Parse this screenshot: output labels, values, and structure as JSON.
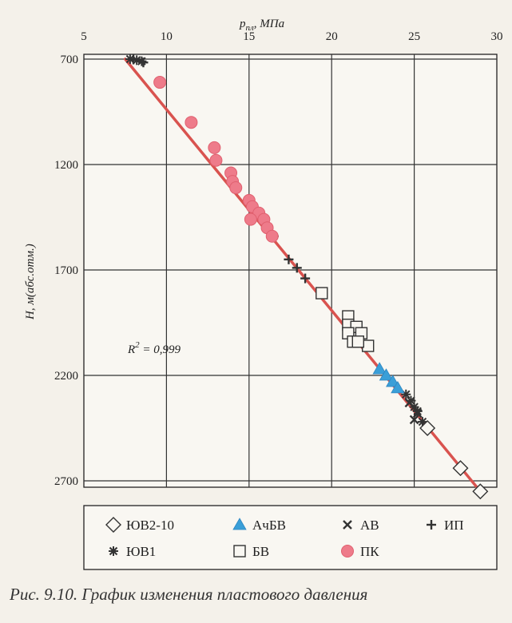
{
  "chart_data": {
    "type": "scatter",
    "xlabel": "p",
    "xlabel_sub": "пл",
    "xlabel_unit": ", МПа",
    "ylabel": "H, м(абс.отм.)",
    "xlim": [
      5,
      30
    ],
    "ylim": [
      700,
      2700
    ],
    "y_inverted": true,
    "x_ticks": [
      "5",
      "10",
      "15",
      "20",
      "25",
      "30"
    ],
    "y_ticks": [
      "700",
      "1200",
      "1700",
      "2200",
      "2700"
    ],
    "x_tick_values": [
      5,
      10,
      15,
      20,
      25,
      30
    ],
    "y_tick_values": [
      700,
      1200,
      1700,
      2200,
      2700
    ],
    "grid": true,
    "annotation": {
      "text": "R",
      "sup": "2",
      "rest": " = 0,999"
    },
    "trendline": {
      "points": [
        [
          7.5,
          700
        ],
        [
          29.0,
          2750
        ]
      ],
      "color": "#d9534f"
    },
    "legend_position": "bottom",
    "series": [
      {
        "name": "ЮВ2-10",
        "marker": "diamond",
        "color": "#333333",
        "points": [
          [
            25.8,
            2450
          ],
          [
            27.8,
            2640
          ],
          [
            29.0,
            2750
          ]
        ]
      },
      {
        "name": "АчБВ",
        "marker": "triangle",
        "color": "#3a9fd8",
        "points": [
          [
            22.9,
            2170
          ],
          [
            23.3,
            2200
          ],
          [
            23.7,
            2230
          ],
          [
            24.0,
            2260
          ]
        ]
      },
      {
        "name": "АВ",
        "marker": "x",
        "color": "#333333",
        "points": [
          [
            24.7,
            2330
          ],
          [
            25.2,
            2380
          ],
          [
            25.0,
            2410
          ]
        ]
      },
      {
        "name": "ИП",
        "marker": "plus",
        "color": "#333333",
        "points": [
          [
            8.0,
            702
          ],
          [
            8.6,
            716
          ],
          [
            16.5,
            1540
          ],
          [
            17.4,
            1650
          ],
          [
            17.9,
            1690
          ],
          [
            18.4,
            1740
          ]
        ]
      },
      {
        "name": "ЮВ1",
        "marker": "asterisk",
        "color": "#333333",
        "points": [
          [
            7.8,
            700
          ],
          [
            8.2,
            705
          ],
          [
            8.5,
            710
          ],
          [
            24.5,
            2290
          ],
          [
            24.8,
            2320
          ],
          [
            25.0,
            2350
          ],
          [
            25.2,
            2370
          ],
          [
            25.5,
            2420
          ]
        ]
      },
      {
        "name": "БВ",
        "marker": "square",
        "color": "#333333",
        "points": [
          [
            19.4,
            1810
          ],
          [
            21.0,
            1920
          ],
          [
            21.0,
            1960
          ],
          [
            21.5,
            1970
          ],
          [
            21.0,
            2000
          ],
          [
            21.3,
            2040
          ],
          [
            21.8,
            2000
          ],
          [
            22.2,
            2060
          ],
          [
            21.6,
            2040
          ]
        ]
      },
      {
        "name": "ПК",
        "marker": "circle",
        "color": "#ee7b8a",
        "points": [
          [
            9.6,
            810
          ],
          [
            11.5,
            1000
          ],
          [
            12.9,
            1120
          ],
          [
            13.0,
            1180
          ],
          [
            13.9,
            1240
          ],
          [
            14.0,
            1280
          ],
          [
            14.2,
            1310
          ],
          [
            15.0,
            1370
          ],
          [
            15.2,
            1400
          ],
          [
            15.6,
            1430
          ],
          [
            15.1,
            1460
          ],
          [
            15.9,
            1460
          ],
          [
            16.1,
            1500
          ],
          [
            16.4,
            1540
          ]
        ]
      }
    ]
  },
  "caption": "Рис. 9.10. График изменения пластового давления"
}
